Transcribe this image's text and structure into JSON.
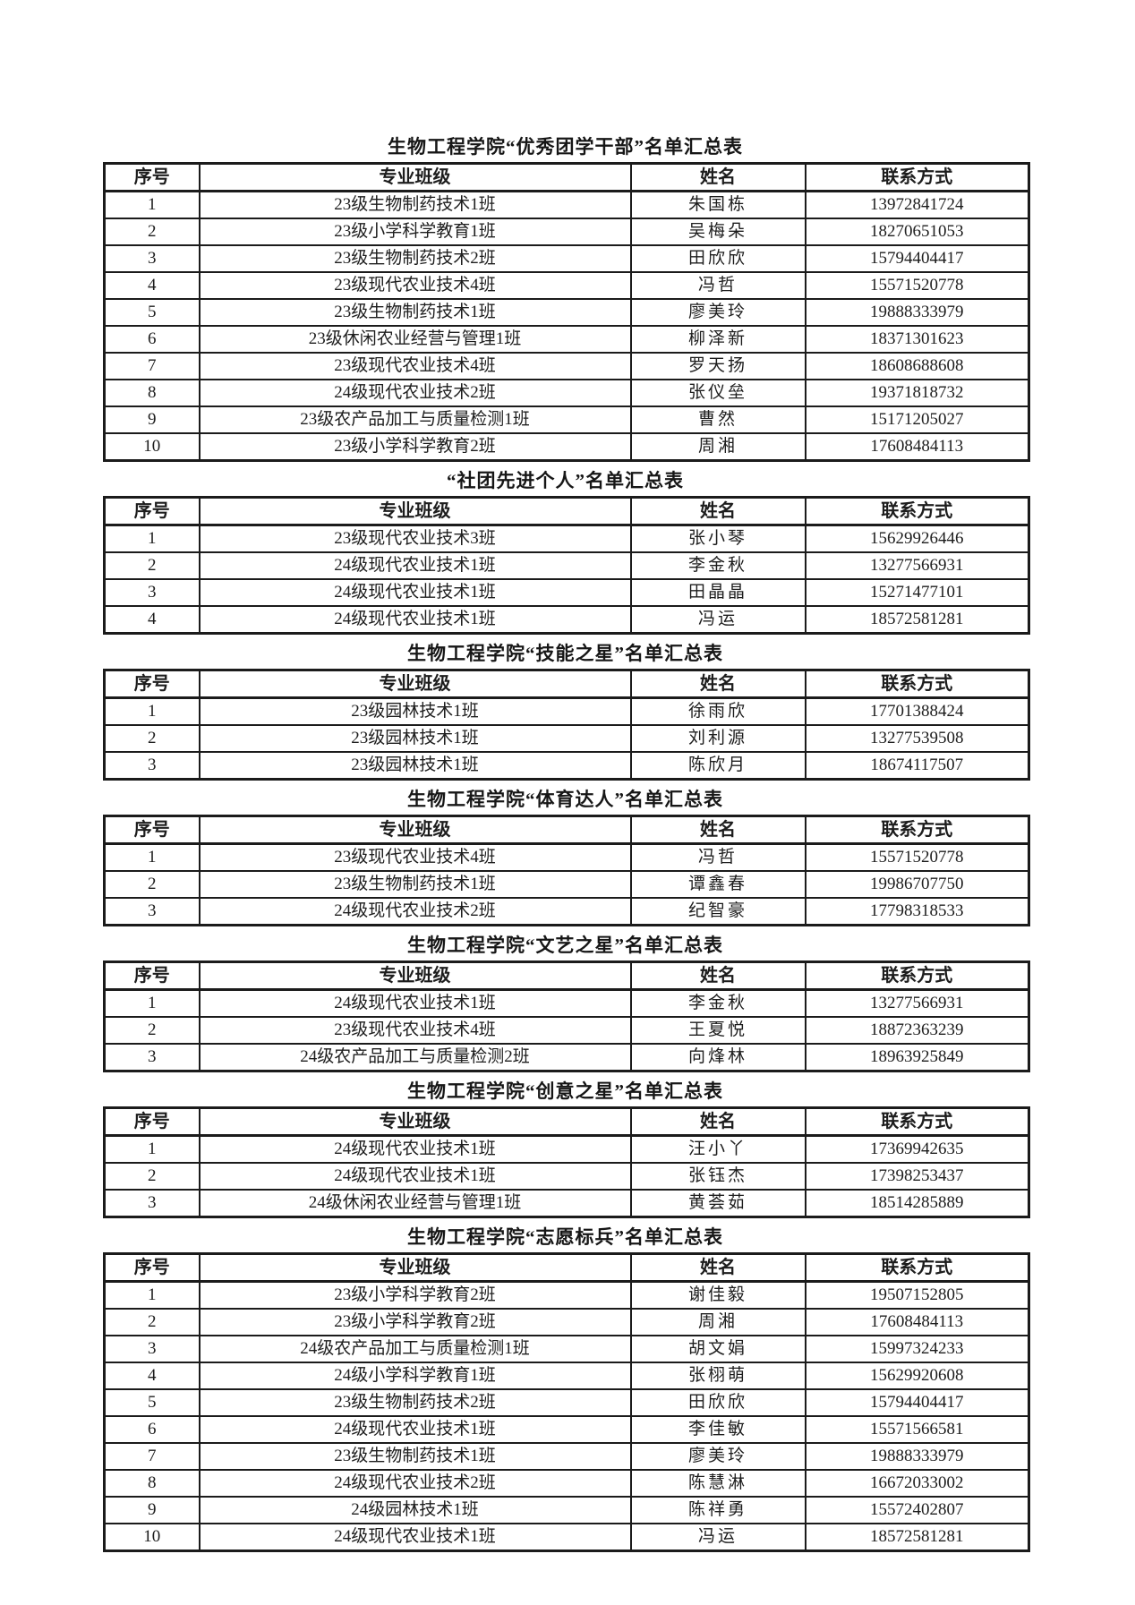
{
  "page": {
    "background": "#ffffff",
    "text_color": "#161616",
    "border_color": "#1b1b1b"
  },
  "column_headers": [
    "序号",
    "专业班级",
    "姓名",
    "联系方式"
  ],
  "tables": [
    {
      "title": "生物工程学院“优秀团学干部”名单汇总表",
      "rows": [
        [
          "1",
          "23级生物制药技术1班",
          "朱国栋",
          "13972841724"
        ],
        [
          "2",
          "23级小学科学教育1班",
          "吴梅朵",
          "18270651053"
        ],
        [
          "3",
          "23级生物制药技术2班",
          "田欣欣",
          "15794404417"
        ],
        [
          "4",
          "23级现代农业技术4班",
          "冯哲",
          "15571520778"
        ],
        [
          "5",
          "23级生物制药技术1班",
          "廖美玲",
          "19888333979"
        ],
        [
          "6",
          "23级休闲农业经营与管理1班",
          "柳泽新",
          "18371301623"
        ],
        [
          "7",
          "23级现代农业技术4班",
          "罗天扬",
          "18608688608"
        ],
        [
          "8",
          "24级现代农业技术2班",
          "张仪垒",
          "19371818732"
        ],
        [
          "9",
          "23级农产品加工与质量检测1班",
          "曹然",
          "15171205027"
        ],
        [
          "10",
          "23级小学科学教育2班",
          "周湘",
          "17608484113"
        ]
      ]
    },
    {
      "title": "“社团先进个人”名单汇总表",
      "rows": [
        [
          "1",
          "23级现代农业技术3班",
          "张小琴",
          "15629926446"
        ],
        [
          "2",
          "24级现代农业技术1班",
          "李金秋",
          "13277566931"
        ],
        [
          "3",
          "24级现代农业技术1班",
          "田晶晶",
          "15271477101"
        ],
        [
          "4",
          "24级现代农业技术1班",
          "冯运",
          "18572581281"
        ]
      ]
    },
    {
      "title": "生物工程学院“技能之星”名单汇总表",
      "rows": [
        [
          "1",
          "23级园林技术1班",
          "徐雨欣",
          "17701388424"
        ],
        [
          "2",
          "23级园林技术1班",
          "刘利源",
          "13277539508"
        ],
        [
          "3",
          "23级园林技术1班",
          "陈欣月",
          "18674117507"
        ]
      ]
    },
    {
      "title": "生物工程学院“体育达人”名单汇总表",
      "rows": [
        [
          "1",
          "23级现代农业技术4班",
          "冯哲",
          "15571520778"
        ],
        [
          "2",
          "23级生物制药技术1班",
          "谭鑫春",
          "19986707750"
        ],
        [
          "3",
          "24级现代农业技术2班",
          "纪智豪",
          "17798318533"
        ]
      ]
    },
    {
      "title": "生物工程学院“文艺之星”名单汇总表",
      "rows": [
        [
          "1",
          "24级现代农业技术1班",
          "李金秋",
          "13277566931"
        ],
        [
          "2",
          "23级现代农业技术4班",
          "王夏悦",
          "18872363239"
        ],
        [
          "3",
          "24级农产品加工与质量检测2班",
          "向烽林",
          "18963925849"
        ]
      ]
    },
    {
      "title": "生物工程学院“创意之星”名单汇总表",
      "rows": [
        [
          "1",
          "24级现代农业技术1班",
          "汪小丫",
          "17369942635"
        ],
        [
          "2",
          "24级现代农业技术1班",
          "张钰杰",
          "17398253437"
        ],
        [
          "3",
          "24级休闲农业经营与管理1班",
          "黄荟茹",
          "18514285889"
        ]
      ]
    },
    {
      "title": "生物工程学院“志愿标兵”名单汇总表",
      "rows": [
        [
          "1",
          "23级小学科学教育2班",
          "谢佳毅",
          "19507152805"
        ],
        [
          "2",
          "23级小学科学教育2班",
          "周湘",
          "17608484113"
        ],
        [
          "3",
          "24级农产品加工与质量检测1班",
          "胡文娟",
          "15997324233"
        ],
        [
          "4",
          "24级小学科学教育1班",
          "张栩萌",
          "15629920608"
        ],
        [
          "5",
          "23级生物制药技术2班",
          "田欣欣",
          "15794404417"
        ],
        [
          "6",
          "24级现代农业技术1班",
          "李佳敏",
          "15571566581"
        ],
        [
          "7",
          "23级生物制药技术1班",
          "廖美玲",
          "19888333979"
        ],
        [
          "8",
          "24级现代农业技术2班",
          "陈慧淋",
          "16672033002"
        ],
        [
          "9",
          "24级园林技术1班",
          "陈祥勇",
          "15572402807"
        ],
        [
          "10",
          "24级现代农业技术1班",
          "冯运",
          "18572581281"
        ]
      ]
    }
  ]
}
